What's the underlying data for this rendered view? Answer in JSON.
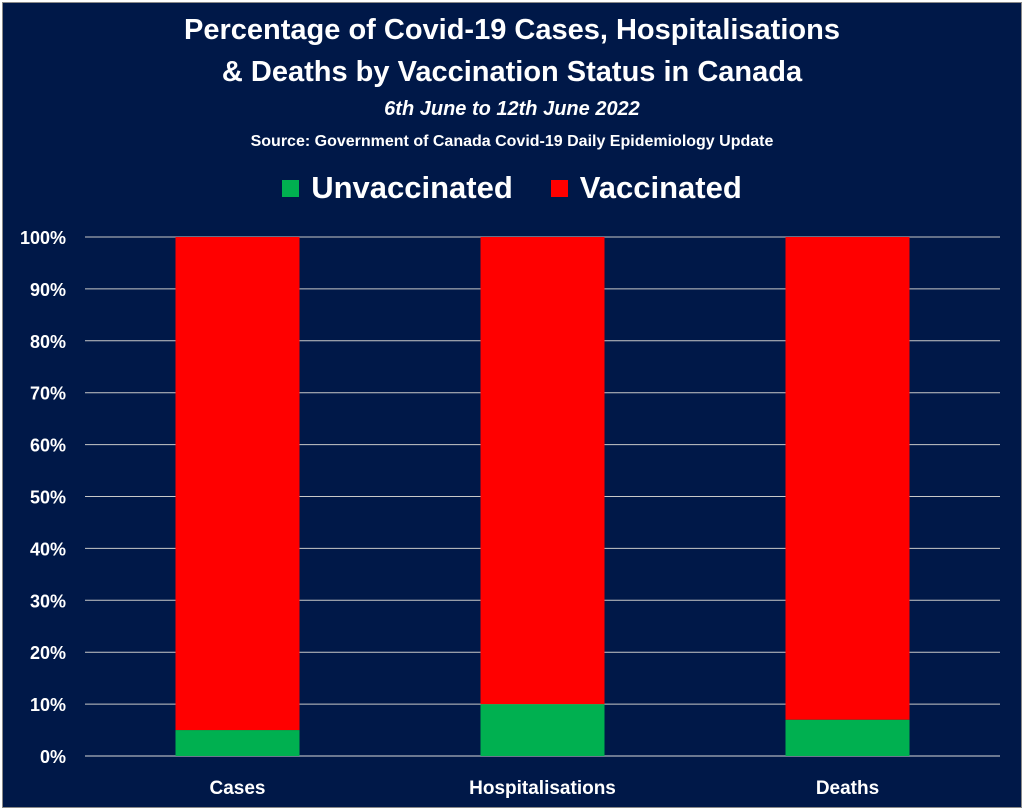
{
  "chart_data": {
    "type": "bar",
    "stacked": true,
    "title": "Percentage of Covid-19 Cases, Hospitalisations & Deaths by Vaccination Status in Canada",
    "title_lines": [
      "Percentage of Covid-19 Cases, Hospitalisations",
      "& Deaths by Vaccination Status in Canada"
    ],
    "subtitle": "6th June to 12th June 2022",
    "source": "Source: Government of Canada  Covid-19 Daily Epidemiology Update",
    "categories": [
      "Cases",
      "Hospitalisations",
      "Deaths"
    ],
    "series": [
      {
        "name": "Unvaccinated",
        "color": "#00b050",
        "values": [
          5,
          10,
          7
        ]
      },
      {
        "name": "Vaccinated",
        "color": "#ff0000",
        "values": [
          95,
          90,
          93
        ]
      }
    ],
    "ylim": [
      0,
      100
    ],
    "yticks": [
      "0%",
      "10%",
      "20%",
      "30%",
      "40%",
      "50%",
      "60%",
      "70%",
      "80%",
      "90%",
      "100%"
    ],
    "grid": true,
    "legend_position": "top",
    "background": "#001848",
    "text_color": "#ffffff"
  }
}
